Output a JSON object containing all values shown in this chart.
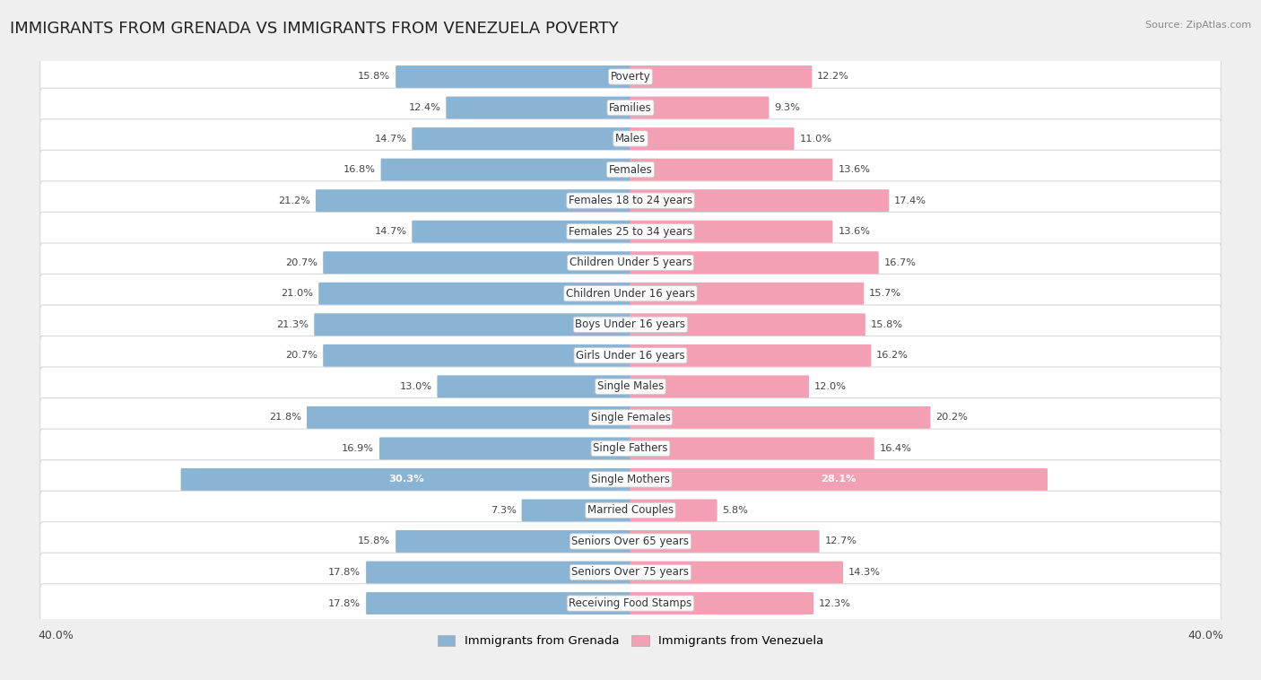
{
  "title": "IMMIGRANTS FROM GRENADA VS IMMIGRANTS FROM VENEZUELA POVERTY",
  "source": "Source: ZipAtlas.com",
  "categories": [
    "Poverty",
    "Families",
    "Males",
    "Females",
    "Females 18 to 24 years",
    "Females 25 to 34 years",
    "Children Under 5 years",
    "Children Under 16 years",
    "Boys Under 16 years",
    "Girls Under 16 years",
    "Single Males",
    "Single Females",
    "Single Fathers",
    "Single Mothers",
    "Married Couples",
    "Seniors Over 65 years",
    "Seniors Over 75 years",
    "Receiving Food Stamps"
  ],
  "grenada_values": [
    15.8,
    12.4,
    14.7,
    16.8,
    21.2,
    14.7,
    20.7,
    21.0,
    21.3,
    20.7,
    13.0,
    21.8,
    16.9,
    30.3,
    7.3,
    15.8,
    17.8,
    17.8
  ],
  "venezuela_values": [
    12.2,
    9.3,
    11.0,
    13.6,
    17.4,
    13.6,
    16.7,
    15.7,
    15.8,
    16.2,
    12.0,
    20.2,
    16.4,
    28.1,
    5.8,
    12.7,
    14.3,
    12.3
  ],
  "grenada_color": "#89b4d4",
  "venezuela_color": "#f4a0b4",
  "grenada_label": "Immigrants from Grenada",
  "venezuela_label": "Immigrants from Venezuela",
  "axis_limit": 40.0,
  "bar_height": 0.62,
  "background_color": "#efefef",
  "row_bg_color": "#ffffff",
  "title_fontsize": 13,
  "label_fontsize": 8.5,
  "value_fontsize": 8.2
}
